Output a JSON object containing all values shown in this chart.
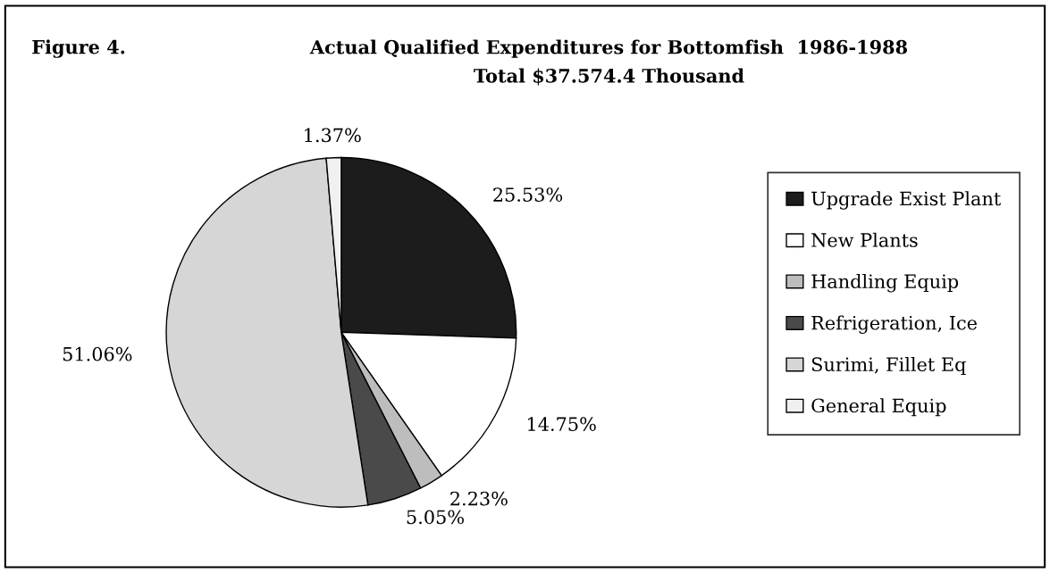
{
  "chart_data": {
    "type": "pie",
    "title": "Actual Qualified Expenditures for Bottomfish  1986-1988",
    "subtitle": "Total $37.574.4 Thousand",
    "annotations": [
      "Figure 4."
    ],
    "categories": [
      "Upgrade Exist Plant",
      "New Plants",
      "Handling Equip",
      "Refrigeration, Ice",
      "Surimi, Fillet Eq",
      "General Equip"
    ],
    "values": [
      25.53,
      14.75,
      2.23,
      5.05,
      51.06,
      1.37
    ],
    "value_labels": [
      "25.53%",
      "14.75%",
      "2.23%",
      "5.05%",
      "51.06%",
      "1.37%"
    ],
    "colors": [
      "#1c1c1c",
      "#ffffff",
      "#bdbdbd",
      "#4a4a4a",
      "#d6d6d6",
      "#f0f0f0"
    ],
    "legend": "right"
  }
}
